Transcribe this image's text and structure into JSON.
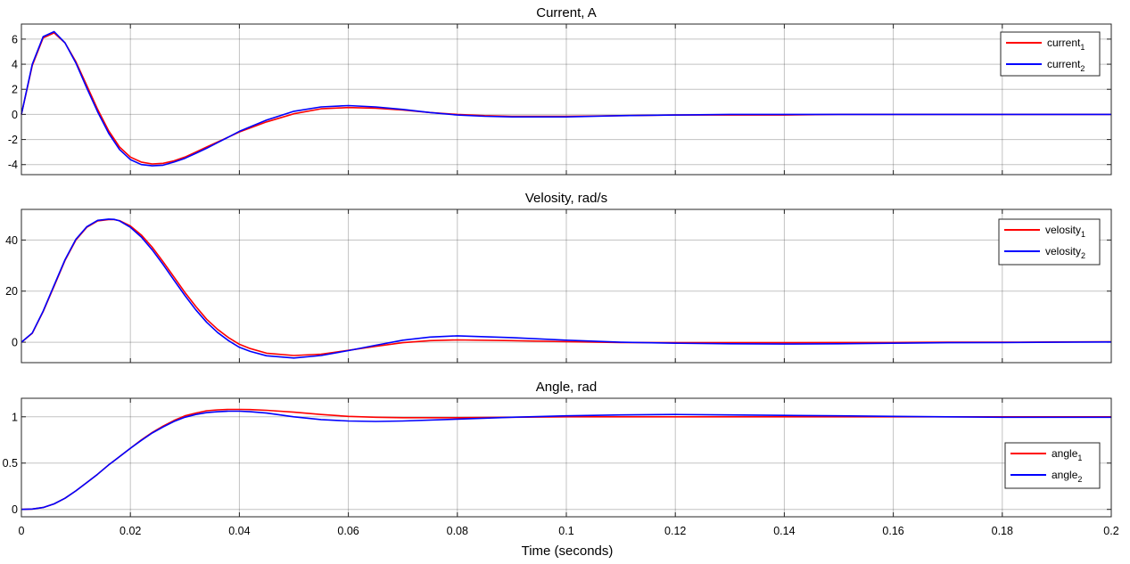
{
  "xlabel": "Time (seconds)",
  "xlim": [
    0,
    0.2
  ],
  "xticks": [
    0,
    0.02,
    0.04,
    0.06,
    0.08,
    0.1,
    0.12,
    0.14,
    0.16,
    0.18,
    0.2
  ],
  "xtick_labels": [
    "0",
    "0.02",
    "0.04",
    "0.06",
    "0.08",
    "0.1",
    "0.12",
    "0.14",
    "0.16",
    "0.18",
    "0.2"
  ],
  "colors": {
    "series_1": "#ff0000",
    "series_2": "#0000ff",
    "grid": "#262626",
    "axis": "#262626"
  },
  "chart_data": [
    {
      "type": "line",
      "title": "Current, A",
      "ylim": [
        -4.8,
        7.2
      ],
      "yticks": [
        -4,
        -2,
        0,
        2,
        4,
        6
      ],
      "ytick_labels": [
        "-4",
        "-2",
        "0",
        "2",
        "4",
        "6"
      ],
      "grid": true,
      "legend_placement": "top-right",
      "series": [
        {
          "name_base": "current",
          "name_sub": "1",
          "color": "#ff0000",
          "x": [
            0,
            0.002,
            0.004,
            0.006,
            0.008,
            0.01,
            0.012,
            0.014,
            0.016,
            0.018,
            0.02,
            0.022,
            0.024,
            0.026,
            0.028,
            0.03,
            0.032,
            0.034,
            0.036,
            0.038,
            0.04,
            0.045,
            0.05,
            0.055,
            0.06,
            0.065,
            0.07,
            0.075,
            0.08,
            0.085,
            0.09,
            0.1,
            0.11,
            0.12,
            0.13,
            0.14,
            0.15,
            0.16,
            0.17,
            0.18,
            0.19,
            0.2
          ],
          "y": [
            0,
            3.9,
            6.1,
            6.5,
            5.7,
            4.2,
            2.3,
            0.4,
            -1.3,
            -2.6,
            -3.4,
            -3.8,
            -3.95,
            -3.9,
            -3.7,
            -3.4,
            -3.0,
            -2.6,
            -2.2,
            -1.8,
            -1.4,
            -0.6,
            0.05,
            0.45,
            0.55,
            0.5,
            0.35,
            0.15,
            0.0,
            -0.1,
            -0.15,
            -0.15,
            -0.1,
            -0.05,
            -0.05,
            -0.05,
            0.0,
            0.0,
            0.0,
            0.0,
            0.0,
            0.0
          ]
        },
        {
          "name_base": "current",
          "name_sub": "2",
          "color": "#0000ff",
          "x": [
            0,
            0.002,
            0.004,
            0.006,
            0.008,
            0.01,
            0.012,
            0.014,
            0.016,
            0.018,
            0.02,
            0.022,
            0.024,
            0.026,
            0.028,
            0.03,
            0.032,
            0.034,
            0.036,
            0.038,
            0.04,
            0.045,
            0.05,
            0.055,
            0.06,
            0.065,
            0.07,
            0.075,
            0.08,
            0.085,
            0.09,
            0.1,
            0.11,
            0.12,
            0.13,
            0.14,
            0.15,
            0.16,
            0.17,
            0.18,
            0.19,
            0.2
          ],
          "y": [
            0,
            4.0,
            6.2,
            6.6,
            5.7,
            4.1,
            2.1,
            0.2,
            -1.5,
            -2.8,
            -3.6,
            -4.0,
            -4.1,
            -4.05,
            -3.8,
            -3.5,
            -3.1,
            -2.7,
            -2.25,
            -1.8,
            -1.35,
            -0.45,
            0.25,
            0.6,
            0.7,
            0.6,
            0.4,
            0.15,
            -0.05,
            -0.15,
            -0.2,
            -0.2,
            -0.1,
            -0.05,
            0.0,
            0.0,
            0.0,
            0.0,
            0.0,
            0.0,
            0.0,
            0.0
          ]
        }
      ]
    },
    {
      "type": "line",
      "title": "Velosity, rad/s",
      "ylim": [
        -8,
        52
      ],
      "yticks": [
        0,
        20,
        40
      ],
      "ytick_labels": [
        "0",
        "20",
        "40"
      ],
      "grid": true,
      "legend_placement": "top-right",
      "series": [
        {
          "name_base": "velosity",
          "name_sub": "1",
          "color": "#ff0000",
          "x": [
            0,
            0.002,
            0.004,
            0.006,
            0.008,
            0.01,
            0.012,
            0.014,
            0.016,
            0.017,
            0.018,
            0.02,
            0.022,
            0.024,
            0.026,
            0.028,
            0.03,
            0.032,
            0.034,
            0.036,
            0.038,
            0.04,
            0.042,
            0.045,
            0.05,
            0.055,
            0.06,
            0.065,
            0.07,
            0.075,
            0.08,
            0.09,
            0.1,
            0.11,
            0.12,
            0.13,
            0.14,
            0.15,
            0.16,
            0.17,
            0.18,
            0.19,
            0.2
          ],
          "y": [
            0,
            3.5,
            12,
            22,
            32,
            40,
            45,
            47.5,
            48,
            48,
            47.6,
            45.5,
            42,
            37.2,
            31.5,
            25.5,
            19.5,
            14,
            9,
            5,
            1.8,
            -0.8,
            -2.5,
            -4.3,
            -5.2,
            -4.7,
            -3.2,
            -1.6,
            -0.2,
            0.6,
            0.9,
            0.6,
            0.2,
            -0.1,
            -0.2,
            -0.2,
            -0.2,
            -0.1,
            -0.1,
            0.0,
            0.0,
            0.1,
            0.2
          ]
        },
        {
          "name_base": "velosity",
          "name_sub": "2",
          "color": "#0000ff",
          "x": [
            0,
            0.002,
            0.004,
            0.006,
            0.008,
            0.01,
            0.012,
            0.014,
            0.016,
            0.017,
            0.018,
            0.02,
            0.022,
            0.024,
            0.026,
            0.028,
            0.03,
            0.032,
            0.034,
            0.036,
            0.038,
            0.04,
            0.042,
            0.045,
            0.05,
            0.055,
            0.06,
            0.065,
            0.07,
            0.075,
            0.08,
            0.09,
            0.1,
            0.11,
            0.12,
            0.13,
            0.14,
            0.15,
            0.16,
            0.17,
            0.18,
            0.19,
            0.2
          ],
          "y": [
            0,
            3.6,
            12.2,
            22.3,
            32.3,
            40.3,
            45.2,
            47.7,
            48.2,
            48.1,
            47.5,
            45,
            41.2,
            36.2,
            30.4,
            24.3,
            18.3,
            12.7,
            7.8,
            3.8,
            0.6,
            -2,
            -3.6,
            -5.3,
            -6.2,
            -5.2,
            -3.3,
            -1.2,
            0.8,
            2.0,
            2.5,
            1.8,
            0.8,
            0.0,
            -0.4,
            -0.6,
            -0.7,
            -0.6,
            -0.4,
            -0.2,
            -0.1,
            0.0,
            0.1
          ]
        }
      ]
    },
    {
      "type": "line",
      "title": "Angle, rad",
      "ylim": [
        -0.08,
        1.2
      ],
      "yticks": [
        0,
        0.5,
        1
      ],
      "ytick_labels": [
        "0",
        "0.5",
        "1"
      ],
      "grid": true,
      "legend_placement": "bottom-right",
      "series": [
        {
          "name_base": "angle",
          "name_sub": "1",
          "color": "#ff0000",
          "x": [
            0,
            0.002,
            0.004,
            0.006,
            0.008,
            0.01,
            0.012,
            0.014,
            0.016,
            0.018,
            0.02,
            0.022,
            0.024,
            0.026,
            0.028,
            0.03,
            0.032,
            0.034,
            0.036,
            0.038,
            0.04,
            0.042,
            0.045,
            0.05,
            0.055,
            0.06,
            0.065,
            0.07,
            0.08,
            0.09,
            0.1,
            0.11,
            0.12,
            0.13,
            0.14,
            0.15,
            0.16,
            0.17,
            0.18,
            0.19,
            0.2
          ],
          "y": [
            0,
            0.004,
            0.02,
            0.06,
            0.12,
            0.2,
            0.29,
            0.38,
            0.48,
            0.57,
            0.66,
            0.75,
            0.83,
            0.9,
            0.96,
            1.01,
            1.04,
            1.065,
            1.075,
            1.08,
            1.08,
            1.078,
            1.07,
            1.05,
            1.025,
            1.005,
            0.995,
            0.99,
            0.99,
            0.995,
            1.0,
            1.0,
            1.0,
            1.0,
            1.0,
            1.0,
            1.0,
            1.0,
            1.0,
            1.0,
            1.0
          ]
        },
        {
          "name_base": "angle",
          "name_sub": "2",
          "color": "#0000ff",
          "x": [
            0,
            0.002,
            0.004,
            0.006,
            0.008,
            0.01,
            0.012,
            0.014,
            0.016,
            0.018,
            0.02,
            0.022,
            0.024,
            0.026,
            0.028,
            0.03,
            0.032,
            0.034,
            0.036,
            0.038,
            0.04,
            0.042,
            0.045,
            0.05,
            0.055,
            0.06,
            0.065,
            0.07,
            0.08,
            0.09,
            0.1,
            0.11,
            0.12,
            0.13,
            0.14,
            0.15,
            0.16,
            0.17,
            0.18,
            0.19,
            0.2
          ],
          "y": [
            0,
            0.004,
            0.02,
            0.06,
            0.12,
            0.2,
            0.29,
            0.38,
            0.48,
            0.57,
            0.66,
            0.745,
            0.825,
            0.89,
            0.95,
            0.995,
            1.025,
            1.045,
            1.055,
            1.06,
            1.06,
            1.055,
            1.04,
            1.0,
            0.97,
            0.955,
            0.95,
            0.955,
            0.975,
            0.995,
            1.01,
            1.02,
            1.025,
            1.02,
            1.015,
            1.01,
            1.005,
            1.0,
            0.995,
            0.995,
            0.995
          ]
        }
      ]
    }
  ]
}
